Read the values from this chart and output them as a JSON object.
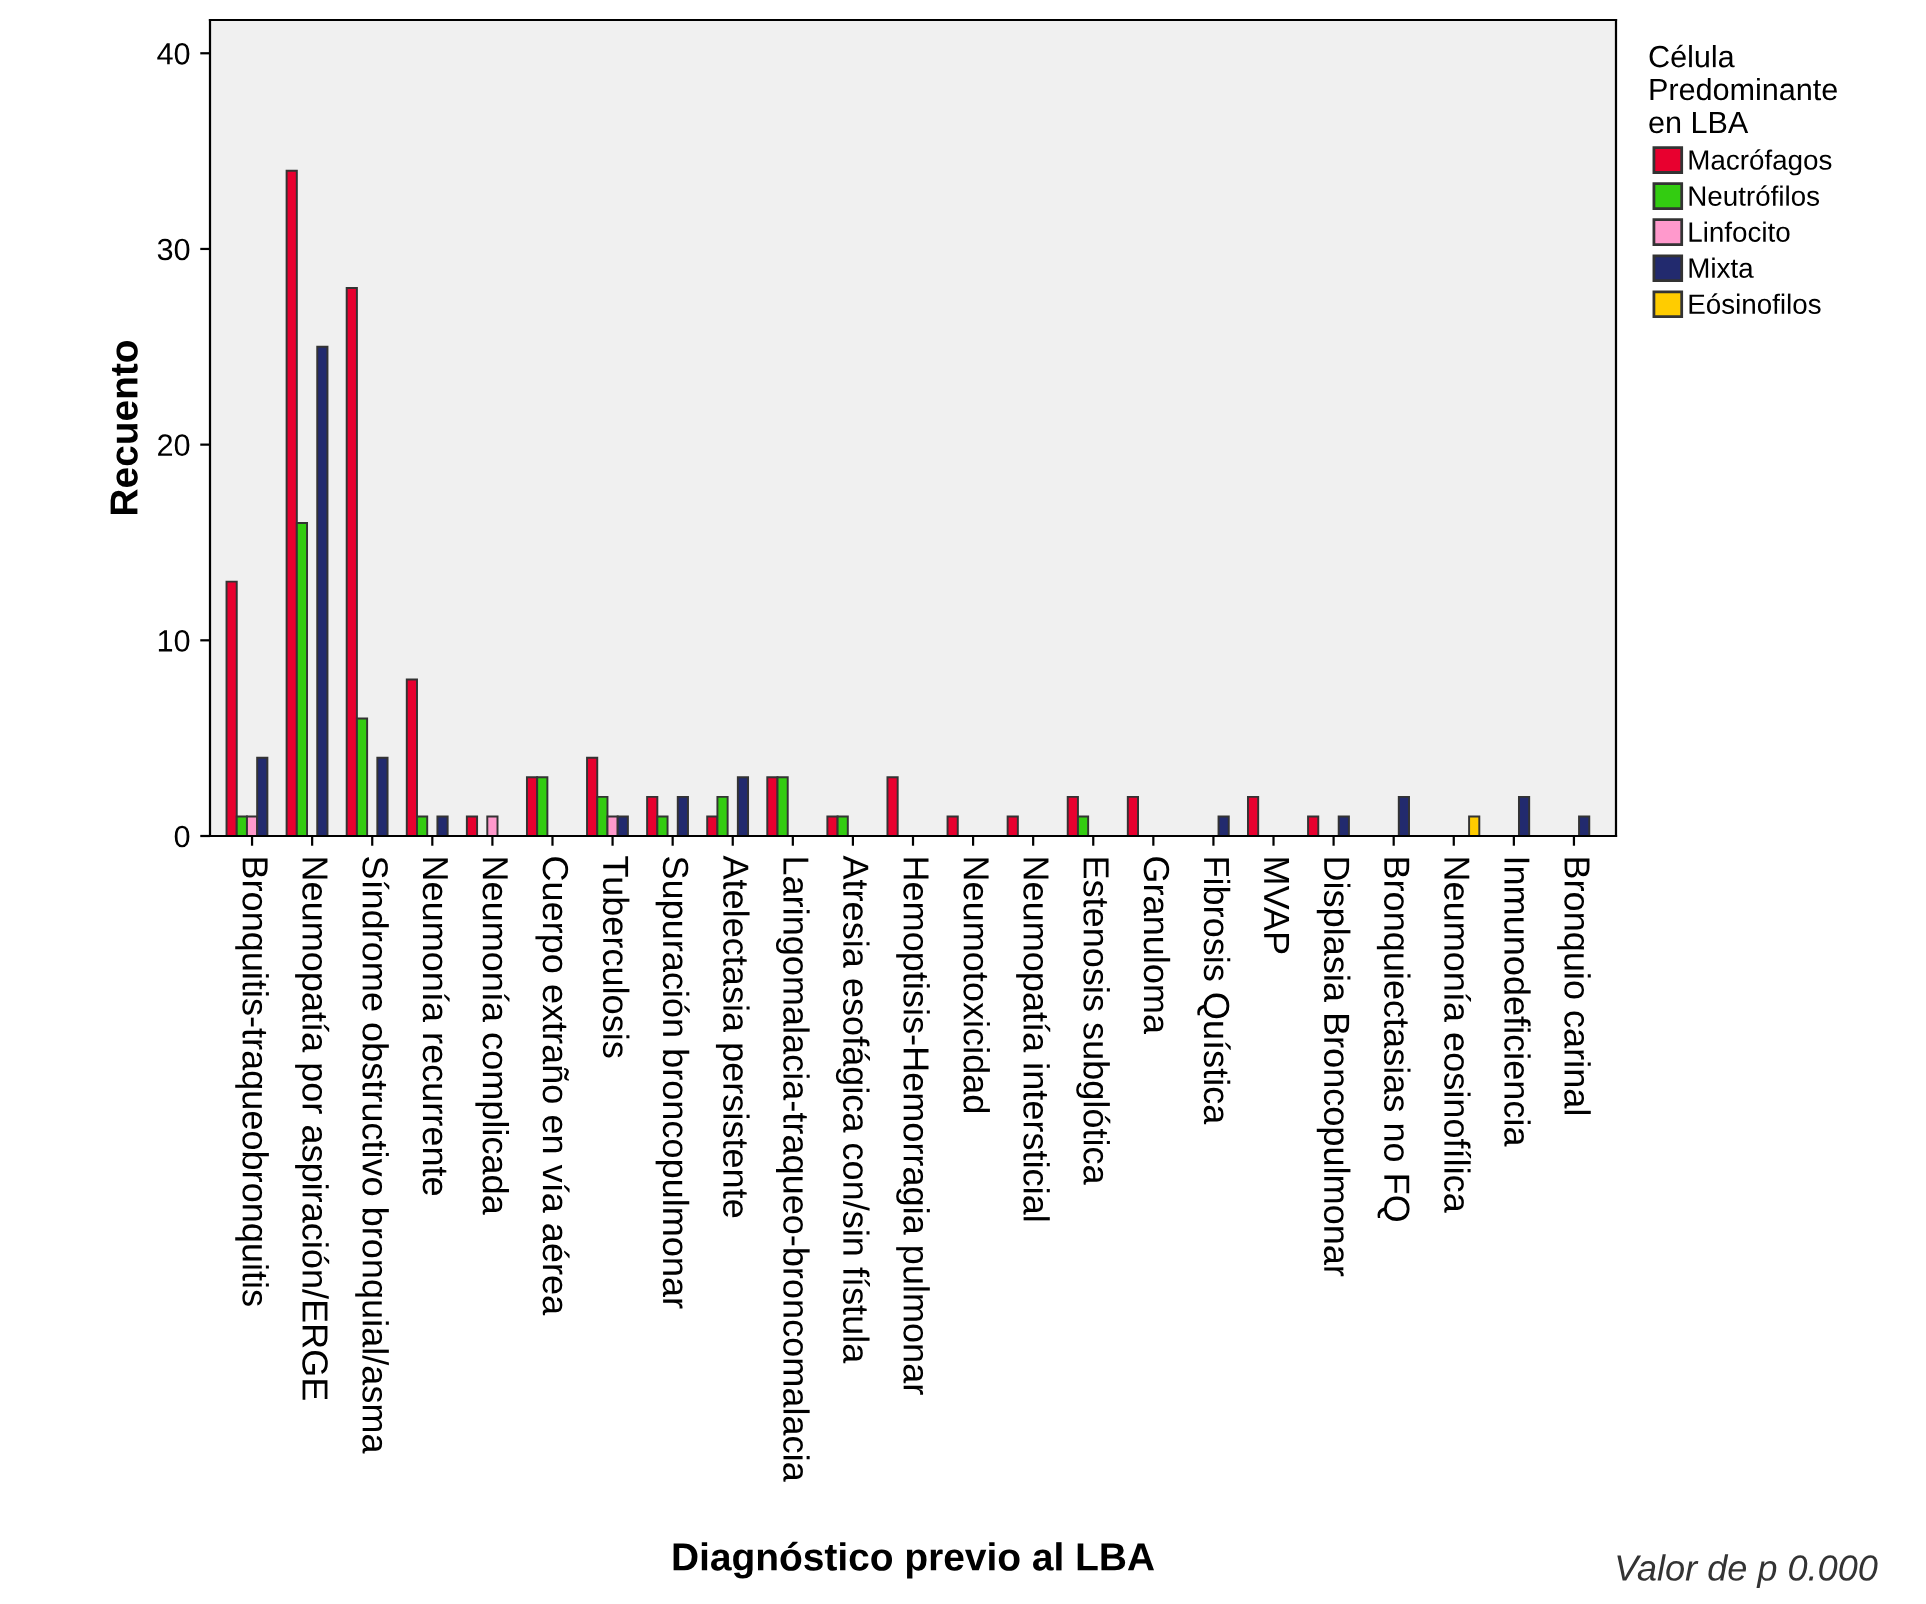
{
  "chart_data": {
    "type": "bar",
    "xlabel": "Diagnóstico previo al LBA",
    "ylabel": "Recuento",
    "legend_title": "Célula\nPredominante\nen LBA",
    "categories": [
      "Bronquitis-traqueobronquitis",
      "Neumopatía por aspiración/ERGE",
      "Síndrome obstructivo bronquial/asma",
      "Neumonía recurrente",
      "Neumonía complicada",
      "Cuerpo extraño en vía aérea",
      "Tuberculosis",
      "Supuración broncopulmonar",
      "Atelectasia persistente",
      "Laringomalacia-traqueo-broncomalacia",
      "Atresia esofágica con/sin fístula",
      "Hemoptisis-Hemorragia pulmonar",
      "Neumotoxicidad",
      "Neumopatía intersticial",
      "Estenosis subglótica",
      "Granuloma",
      "Fibrosis Quística",
      "MVAP",
      "Displasia Broncopulmonar",
      "Bronquiectasias no FQ",
      "Neumonía eosinofílica",
      "Inmunodeficiencia",
      "Bronquio carinal"
    ],
    "series": [
      {
        "name": "Macrófagos",
        "color": "#e8002f",
        "values": [
          13,
          34,
          28,
          8,
          1,
          3,
          4,
          2,
          1,
          3,
          1,
          3,
          1,
          1,
          2,
          2,
          null,
          2,
          1,
          null,
          null,
          null,
          null
        ]
      },
      {
        "name": "Neutrófilos",
        "color": "#33cc11",
        "values": [
          1,
          16,
          6,
          1,
          null,
          3,
          2,
          1,
          2,
          3,
          1,
          null,
          null,
          null,
          1,
          null,
          null,
          null,
          null,
          null,
          null,
          null,
          null
        ]
      },
      {
        "name": "Linfocito",
        "color": "#ff99cc",
        "values": [
          1,
          null,
          null,
          null,
          1,
          null,
          1,
          null,
          null,
          null,
          null,
          null,
          null,
          null,
          null,
          null,
          null,
          null,
          null,
          null,
          null,
          null,
          null
        ]
      },
      {
        "name": "Mixta",
        "color": "#222a6e",
        "values": [
          4,
          25,
          4,
          1,
          null,
          null,
          1,
          2,
          3,
          null,
          null,
          null,
          null,
          null,
          null,
          null,
          1,
          null,
          1,
          2,
          null,
          2,
          1
        ]
      },
      {
        "name": "Eósinofilos",
        "color": "#ffcc00",
        "values": [
          null,
          null,
          null,
          null,
          null,
          null,
          null,
          null,
          null,
          null,
          null,
          null,
          null,
          null,
          null,
          null,
          null,
          null,
          null,
          null,
          1,
          null,
          null
        ]
      }
    ],
    "ylim": [
      0,
      41.7
    ],
    "yticks": [
      0,
      10,
      20,
      30,
      40
    ],
    "grid": false,
    "legend": "right",
    "annotations": [
      "Valor de p 0.000"
    ]
  }
}
